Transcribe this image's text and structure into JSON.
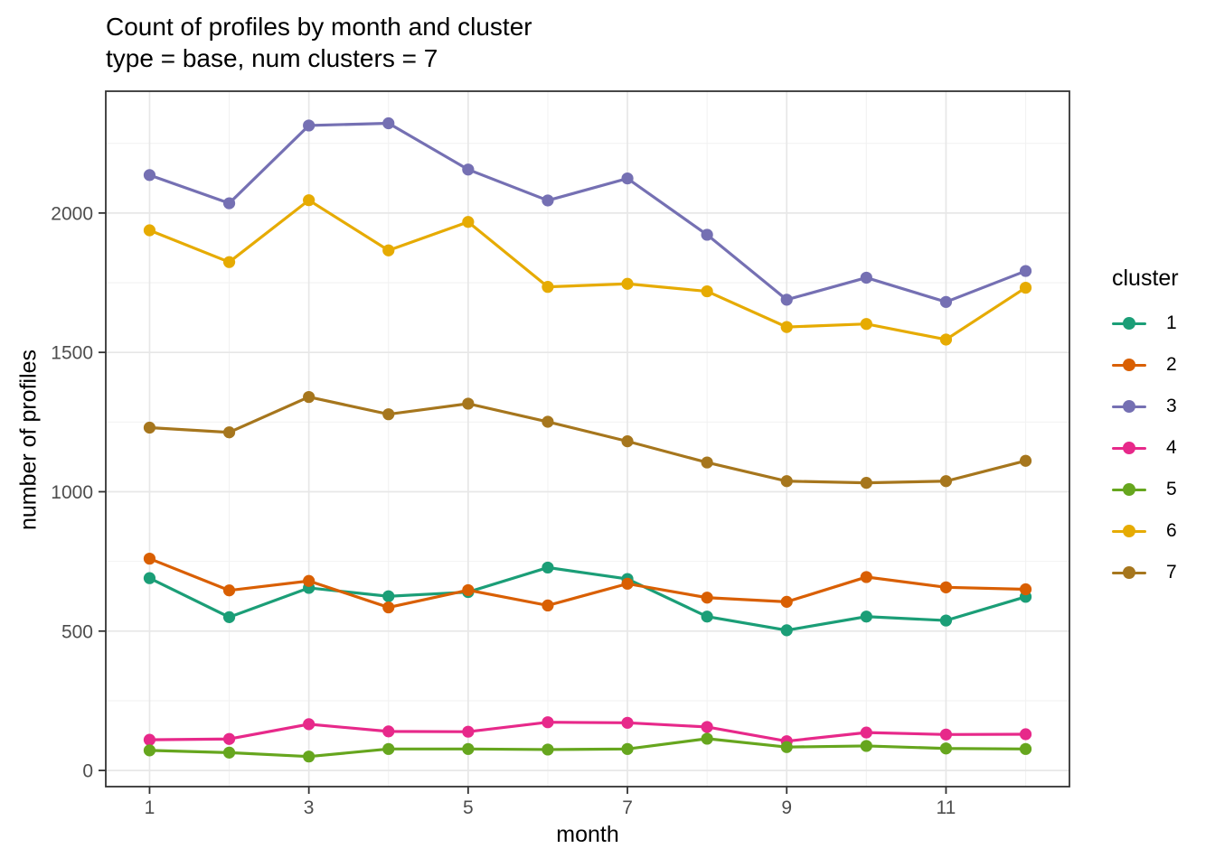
{
  "title": "Count of profiles by month and cluster",
  "subtitle": "type = base, num clusters = 7",
  "chart_data": {
    "type": "line",
    "x": [
      1,
      2,
      3,
      4,
      5,
      6,
      7,
      8,
      9,
      10,
      11,
      12
    ],
    "xlabel": "month",
    "ylabel": "number of profiles",
    "x_ticks": [
      1,
      3,
      5,
      7,
      9,
      11
    ],
    "x_minor": [
      2,
      4,
      6,
      8,
      10,
      12
    ],
    "y_ticks": [
      0,
      500,
      1000,
      1500,
      2000
    ],
    "y_minor": [
      250,
      750,
      1250,
      1750,
      2250
    ],
    "xlim": [
      0.45,
      12.55
    ],
    "ylim": [
      -58,
      2437
    ],
    "grid": true,
    "legend_title": "cluster",
    "legend_position": "right",
    "panel_border_color": "#333333",
    "major_grid_color": "#e7e7e7",
    "minor_grid_color": "#f2f2f2",
    "tick_label_color": "#4d4d4d",
    "series": [
      {
        "name": "1",
        "color": "#1B9E77",
        "values": [
          690,
          550,
          655,
          625,
          640,
          728,
          687,
          552,
          503,
          552,
          538,
          623
        ]
      },
      {
        "name": "2",
        "color": "#D95F02",
        "values": [
          760,
          646,
          680,
          585,
          647,
          592,
          670,
          620,
          605,
          694,
          657,
          650
        ]
      },
      {
        "name": "3",
        "color": "#7570B3",
        "values": [
          2136,
          2035,
          2314,
          2322,
          2156,
          2045,
          2124,
          1922,
          1689,
          1768,
          1681,
          1792
        ]
      },
      {
        "name": "4",
        "color": "#E7298A",
        "values": [
          110,
          113,
          166,
          140,
          139,
          173,
          171,
          156,
          105,
          136,
          129,
          130
        ]
      },
      {
        "name": "5",
        "color": "#66A61E",
        "values": [
          72,
          64,
          50,
          77,
          77,
          75,
          77,
          114,
          84,
          88,
          79,
          77
        ]
      },
      {
        "name": "6",
        "color": "#E6AB02",
        "values": [
          1938,
          1824,
          2046,
          1866,
          1968,
          1735,
          1746,
          1719,
          1591,
          1602,
          1546,
          1732
        ]
      },
      {
        "name": "7",
        "color": "#A6761D",
        "values": [
          1230,
          1213,
          1340,
          1278,
          1316,
          1251,
          1181,
          1105,
          1038,
          1032,
          1038,
          1111
        ]
      }
    ]
  }
}
